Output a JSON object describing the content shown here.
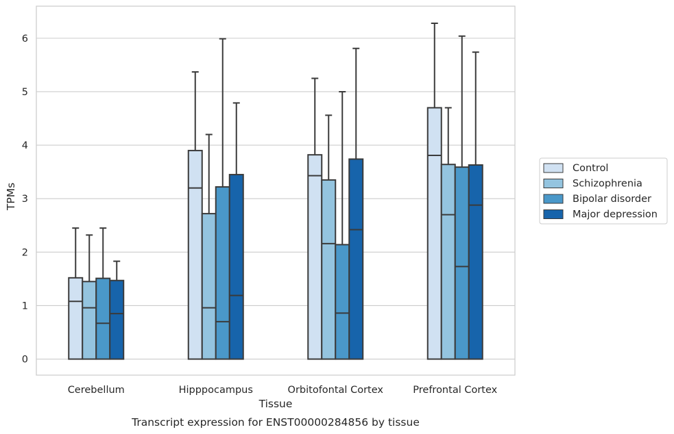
{
  "caption": "Transcript expression for ENST00000284856 by tissue",
  "chart_data": {
    "type": "bar",
    "xlabel": "Tissue",
    "ylabel": "TPMs",
    "ylim": [
      -0.3,
      6.6
    ],
    "yticks": [
      0,
      1,
      2,
      3,
      4,
      5,
      6
    ],
    "grid": "horizontal",
    "legend_position": "right",
    "categories": [
      "Cerebellum",
      "Hipppocampus",
      "Orbitofontal Cortex",
      "Prefrontal Cortex"
    ],
    "series": [
      {
        "name": "Control",
        "color": "#d0e1f2",
        "box_top": [
          1.52,
          3.9,
          3.82,
          4.7
        ],
        "median": [
          1.08,
          3.2,
          3.43,
          3.81
        ],
        "whisker": [
          2.45,
          5.37,
          5.25,
          6.28
        ]
      },
      {
        "name": "Schizophrenia",
        "color": "#94c4df",
        "box_top": [
          1.45,
          2.72,
          3.35,
          3.64
        ],
        "median": [
          0.96,
          0.96,
          2.16,
          2.7
        ],
        "whisker": [
          2.32,
          4.2,
          4.56,
          4.7
        ]
      },
      {
        "name": "Bipolar disorder",
        "color": "#4a98c9",
        "box_top": [
          1.51,
          3.22,
          2.14,
          3.59
        ],
        "median": [
          0.67,
          0.7,
          0.86,
          1.73
        ],
        "whisker": [
          2.45,
          5.99,
          5.0,
          6.04
        ]
      },
      {
        "name": "Major depression",
        "color": "#1764ab",
        "box_top": [
          1.47,
          3.45,
          3.74,
          3.63
        ],
        "median": [
          0.85,
          1.19,
          2.42,
          2.88
        ],
        "whisker": [
          1.83,
          4.79,
          5.81,
          5.74
        ]
      }
    ]
  }
}
